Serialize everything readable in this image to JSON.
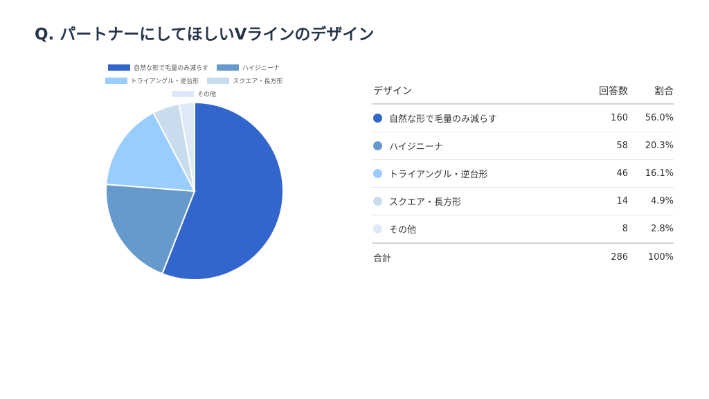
{
  "page_title": "Q. パートナーにしてほしいVラインのデザイン",
  "chart_data": {
    "type": "pie",
    "title": "Q. パートナーにしてほしいVラインのデザイン",
    "legend_position": "top",
    "categories": [
      "自然な形で毛量のみ減らす",
      "ハイジニーナ",
      "トライアングル・逆台形",
      "スクエア・長方形",
      "その他"
    ],
    "values": [
      160,
      58,
      46,
      14,
      8
    ],
    "percentages": [
      "56.0%",
      "20.3%",
      "16.1%",
      "4.9%",
      "2.8%"
    ],
    "colors": [
      "#3266cc",
      "#6699cc",
      "#99ccff",
      "#c9dcee",
      "#dde9f6"
    ]
  },
  "table": {
    "headers": {
      "design": "デザイン",
      "count": "回答数",
      "ratio": "割合"
    },
    "rows": [
      {
        "label": "自然な形で毛量のみ減らす",
        "count": "160",
        "ratio": "56.0%",
        "color": "#3266cc"
      },
      {
        "label": "ハイジニーナ",
        "count": "58",
        "ratio": "20.3%",
        "color": "#6699cc"
      },
      {
        "label": "トライアングル・逆台形",
        "count": "46",
        "ratio": "16.1%",
        "color": "#99ccff"
      },
      {
        "label": "スクエア・長方形",
        "count": "14",
        "ratio": "4.9%",
        "color": "#c9dcee"
      },
      {
        "label": "その他",
        "count": "8",
        "ratio": "2.8%",
        "color": "#dde9f6"
      }
    ],
    "total": {
      "label": "合計",
      "count": "286",
      "ratio": "100%"
    }
  }
}
